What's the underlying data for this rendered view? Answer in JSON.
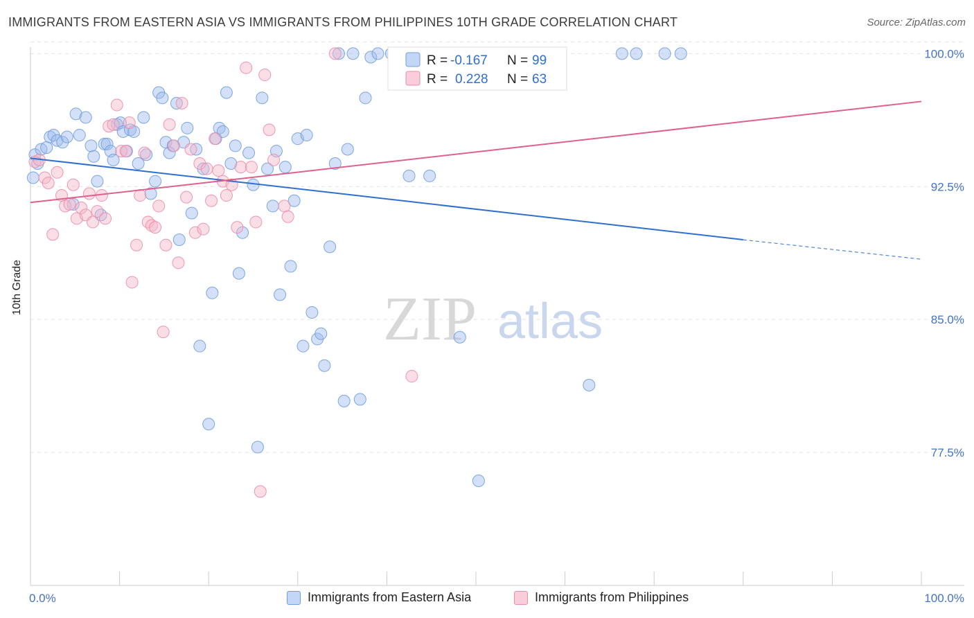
{
  "title": "IMMIGRANTS FROM EASTERN ASIA VS IMMIGRANTS FROM PHILIPPINES 10TH GRADE CORRELATION CHART",
  "source": "Source: ZipAtlas.com",
  "watermark": {
    "part1": "ZIP",
    "part2": "atlas"
  },
  "legend_stats": [
    {
      "r_label": "R =",
      "r_value": "-0.167",
      "n_label": "N =",
      "n_value": "99"
    },
    {
      "r_label": "R =",
      "r_value": "0.228",
      "n_label": "N =",
      "n_value": "63"
    }
  ],
  "colors": {
    "blue_fill": "#9dbbee",
    "blue_stroke": "#6f9ee0",
    "blue_line": "#2e6fd0",
    "pink_fill": "#f5b5c8",
    "pink_stroke": "#ec8cab",
    "pink_line": "#e0608c",
    "tick_text": "#4472c4",
    "grid": "#e3e3e3"
  },
  "chart_data": {
    "type": "scatter",
    "xlabel": "",
    "ylabel": "10th Grade",
    "xlim": [
      0,
      100
    ],
    "ylim": [
      70,
      100.6
    ],
    "x_tick_labels": [
      "0.0%",
      "100.0%"
    ],
    "y_ticks": [
      {
        "value": 100,
        "label": "100.0%"
      },
      {
        "value": 92.5,
        "label": "92.5%"
      },
      {
        "value": 85,
        "label": "85.0%"
      },
      {
        "value": 77.5,
        "label": "77.5%"
      }
    ],
    "grid": true,
    "legend_position": "bottom",
    "series": [
      {
        "name": "Immigrants from Eastern Asia",
        "color": "#6f9ee0",
        "trend": {
          "x_solid": [
            0,
            80
          ],
          "y_solid": [
            94.1,
            89.5
          ],
          "x_dashed": [
            80,
            100
          ],
          "y_dashed": [
            89.5,
            88.4
          ]
        },
        "points": [
          [
            0.3,
            93.0
          ],
          [
            0.5,
            94.3
          ],
          [
            0.8,
            93.8
          ],
          [
            1.2,
            94.6
          ],
          [
            1.8,
            94.7
          ],
          [
            2.2,
            95.3
          ],
          [
            2.6,
            95.4
          ],
          [
            3.0,
            95.1
          ],
          [
            3.6,
            95.0
          ],
          [
            4.1,
            95.3
          ],
          [
            4.8,
            91.5
          ],
          [
            5.1,
            96.6
          ],
          [
            5.5,
            95.4
          ],
          [
            6.2,
            96.4
          ],
          [
            6.8,
            94.8
          ],
          [
            7.1,
            94.2
          ],
          [
            7.5,
            92.8
          ],
          [
            7.9,
            90.9
          ],
          [
            8.3,
            94.9
          ],
          [
            8.6,
            94.9
          ],
          [
            9.0,
            94.5
          ],
          [
            9.3,
            94.0
          ],
          [
            9.7,
            96.0
          ],
          [
            10.1,
            96.1
          ],
          [
            10.4,
            95.6
          ],
          [
            10.8,
            94.5
          ],
          [
            11.2,
            95.7
          ],
          [
            11.6,
            95.6
          ],
          [
            12.1,
            93.8
          ],
          [
            12.7,
            96.4
          ],
          [
            13.0,
            94.3
          ],
          [
            13.5,
            92.1
          ],
          [
            14.0,
            92.8
          ],
          [
            14.4,
            97.8
          ],
          [
            14.8,
            97.5
          ],
          [
            15.2,
            95.0
          ],
          [
            15.6,
            94.4
          ],
          [
            16.0,
            94.8
          ],
          [
            16.4,
            97.2
          ],
          [
            16.7,
            89.5
          ],
          [
            17.2,
            95.0
          ],
          [
            17.6,
            95.8
          ],
          [
            18.1,
            91.0
          ],
          [
            18.6,
            94.6
          ],
          [
            19.0,
            83.5
          ],
          [
            19.4,
            93.5
          ],
          [
            20.0,
            79.1
          ],
          [
            20.4,
            86.5
          ],
          [
            20.8,
            95.2
          ],
          [
            21.2,
            95.8
          ],
          [
            21.6,
            95.6
          ],
          [
            22.0,
            97.8
          ],
          [
            22.5,
            93.8
          ],
          [
            23.0,
            94.8
          ],
          [
            23.4,
            87.6
          ],
          [
            23.8,
            89.9
          ],
          [
            24.5,
            94.4
          ],
          [
            25.0,
            92.6
          ],
          [
            25.5,
            77.8
          ],
          [
            26.0,
            97.5
          ],
          [
            26.6,
            93.5
          ],
          [
            27.2,
            91.4
          ],
          [
            27.6,
            94.5
          ],
          [
            28.0,
            86.4
          ],
          [
            28.6,
            93.6
          ],
          [
            29.2,
            88.0
          ],
          [
            29.6,
            91.7
          ],
          [
            30.0,
            95.2
          ],
          [
            30.6,
            83.5
          ],
          [
            31.0,
            95.4
          ],
          [
            31.6,
            85.4
          ],
          [
            32.2,
            83.9
          ],
          [
            32.6,
            84.2
          ],
          [
            33.0,
            82.4
          ],
          [
            33.6,
            89.1
          ],
          [
            34.2,
            93.8
          ],
          [
            34.6,
            100.0
          ],
          [
            35.2,
            80.4
          ],
          [
            35.6,
            94.6
          ],
          [
            36.2,
            100.0
          ],
          [
            37.0,
            80.5
          ],
          [
            37.6,
            97.5
          ],
          [
            38.2,
            99.8
          ],
          [
            39.0,
            100.0
          ],
          [
            40.5,
            100.0
          ],
          [
            42.5,
            93.1
          ],
          [
            44.8,
            93.1
          ],
          [
            46.2,
            100.0
          ],
          [
            48.2,
            84.0
          ],
          [
            50.3,
            75.9
          ],
          [
            52.2,
            100.0
          ],
          [
            54.3,
            100.0
          ],
          [
            56.1,
            100.0
          ],
          [
            59.0,
            100.0
          ],
          [
            62.7,
            81.3
          ],
          [
            66.4,
            100.0
          ],
          [
            68.0,
            100.0
          ],
          [
            71.2,
            100.0
          ],
          [
            73.0,
            100.0
          ]
        ]
      },
      {
        "name": "Immigrants from Philippines",
        "color": "#ec8cab",
        "trend": {
          "x_solid": [
            0,
            100
          ],
          "y_solid": [
            91.6,
            97.3
          ]
        },
        "points": [
          [
            0.5,
            93.9
          ],
          [
            1.0,
            94.0
          ],
          [
            1.6,
            93.0
          ],
          [
            2.0,
            92.7
          ],
          [
            2.5,
            89.8
          ],
          [
            3.0,
            93.3
          ],
          [
            3.5,
            92.0
          ],
          [
            3.9,
            91.4
          ],
          [
            4.4,
            91.5
          ],
          [
            4.8,
            92.6
          ],
          [
            5.2,
            90.7
          ],
          [
            5.7,
            91.3
          ],
          [
            6.2,
            90.9
          ],
          [
            6.6,
            92.1
          ],
          [
            7.0,
            90.5
          ],
          [
            7.5,
            91.1
          ],
          [
            8.0,
            92.0
          ],
          [
            8.4,
            90.7
          ],
          [
            8.8,
            95.9
          ],
          [
            9.3,
            96.0
          ],
          [
            9.7,
            97.1
          ],
          [
            10.2,
            94.5
          ],
          [
            10.7,
            94.5
          ],
          [
            11.1,
            96.1
          ],
          [
            11.4,
            87.1
          ],
          [
            11.9,
            89.2
          ],
          [
            12.3,
            92.0
          ],
          [
            12.8,
            94.4
          ],
          [
            13.2,
            90.5
          ],
          [
            13.6,
            90.3
          ],
          [
            14.0,
            90.2
          ],
          [
            14.4,
            91.4
          ],
          [
            14.9,
            84.3
          ],
          [
            15.2,
            89.2
          ],
          [
            15.6,
            96.0
          ],
          [
            16.1,
            94.8
          ],
          [
            16.6,
            88.2
          ],
          [
            17.0,
            97.2
          ],
          [
            17.5,
            91.9
          ],
          [
            18.0,
            94.6
          ],
          [
            18.5,
            89.9
          ],
          [
            19.0,
            93.8
          ],
          [
            19.4,
            90.1
          ],
          [
            19.8,
            93.5
          ],
          [
            20.3,
            91.7
          ],
          [
            20.7,
            95.2
          ],
          [
            21.1,
            93.4
          ],
          [
            21.6,
            92.8
          ],
          [
            22.0,
            92.0
          ],
          [
            22.6,
            92.6
          ],
          [
            23.2,
            90.2
          ],
          [
            23.6,
            93.6
          ],
          [
            24.2,
            99.2
          ],
          [
            24.8,
            93.6
          ],
          [
            25.3,
            90.5
          ],
          [
            25.8,
            75.3
          ],
          [
            26.3,
            98.8
          ],
          [
            26.8,
            95.7
          ],
          [
            27.3,
            94.0
          ],
          [
            28.5,
            91.4
          ],
          [
            28.9,
            90.8
          ],
          [
            34.2,
            100.0
          ],
          [
            42.8,
            81.8
          ]
        ]
      }
    ]
  },
  "bottom_legend": [
    {
      "label": "Immigrants from Eastern Asia"
    },
    {
      "label": "Immigrants from Philippines"
    }
  ]
}
